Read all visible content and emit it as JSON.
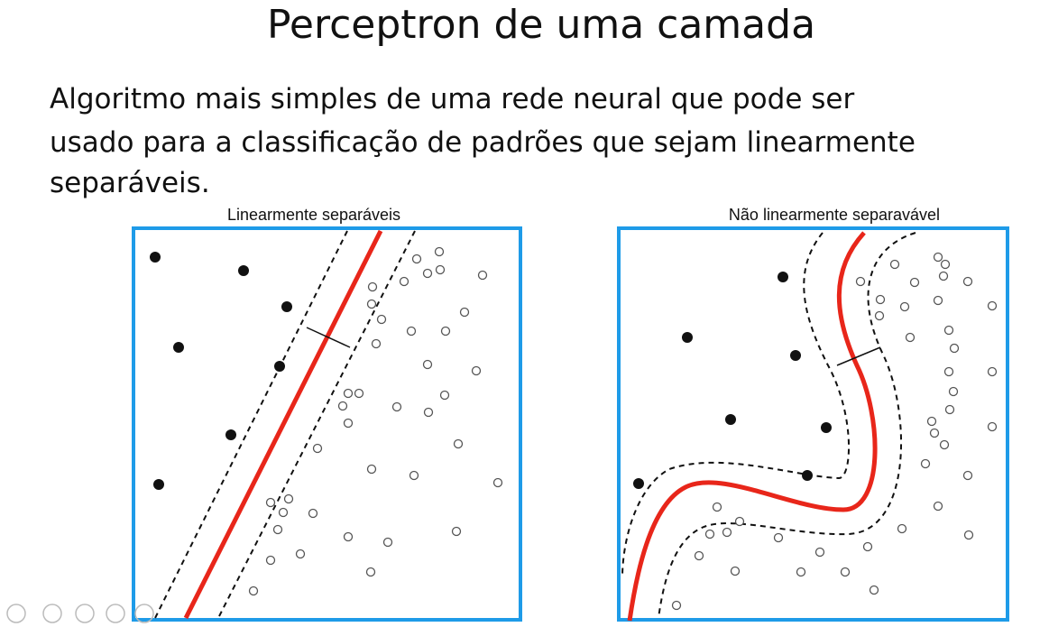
{
  "slide": {
    "title": "Perceptron de uma camada",
    "body": [
      "Algoritmo mais simples de uma rede neural que pode ser",
      "usado para a classificação de padrões que sejam linearmente",
      "separáveis."
    ],
    "panels": [
      {
        "label": "Linearmente separáveis"
      },
      {
        "label": "Não linearmente separavável"
      }
    ]
  }
}
